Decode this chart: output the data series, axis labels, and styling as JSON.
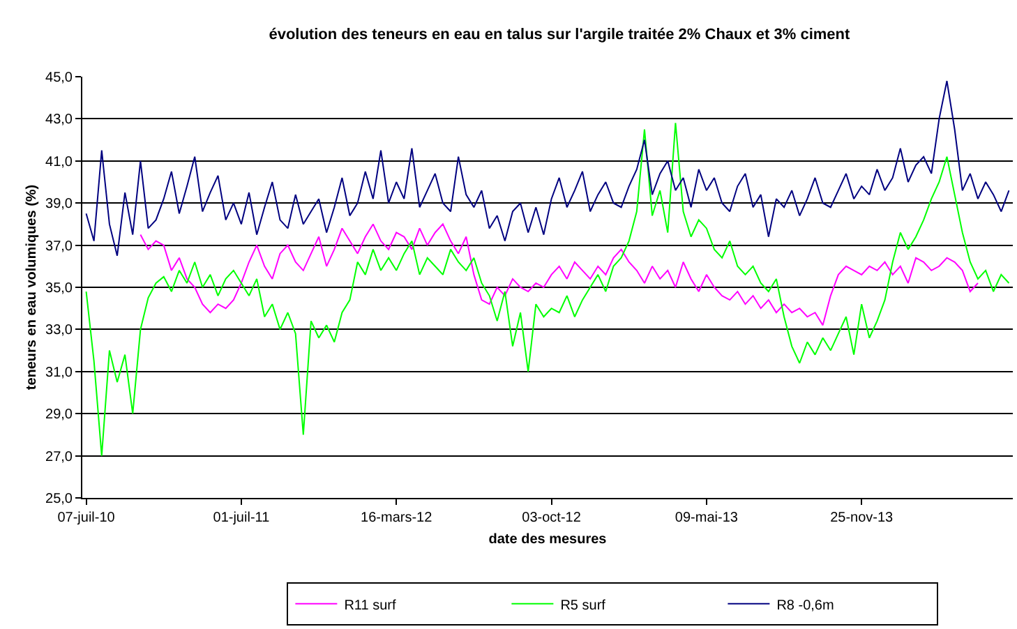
{
  "chart_data": {
    "type": "line",
    "title": "évolution des teneurs en eau en talus sur l'argile traitée 2% Chaux et 3% ciment",
    "xlabel": "date des mesures",
    "ylabel": "teneurs en eau volumiques (%)",
    "categories": [
      "07-juil-10",
      null,
      null,
      null,
      null,
      null,
      null,
      null,
      null,
      null,
      null,
      null,
      null,
      null,
      null,
      null,
      null,
      null,
      null,
      null,
      "01-juil-11",
      null,
      null,
      null,
      null,
      null,
      null,
      null,
      null,
      null,
      null,
      null,
      null,
      null,
      null,
      null,
      null,
      null,
      null,
      null,
      "16-mars-12",
      null,
      null,
      null,
      null,
      null,
      null,
      null,
      null,
      null,
      null,
      null,
      null,
      null,
      null,
      null,
      null,
      null,
      null,
      null,
      "03-oct-12",
      null,
      null,
      null,
      null,
      null,
      null,
      null,
      null,
      null,
      null,
      null,
      null,
      null,
      null,
      null,
      null,
      null,
      null,
      null,
      "09-mai-13",
      null,
      null,
      null,
      null,
      null,
      null,
      null,
      null,
      null,
      null,
      null,
      null,
      null,
      null,
      null,
      null,
      null,
      null,
      null,
      "25-nov-13",
      null,
      null,
      null,
      null,
      null,
      null,
      null,
      null,
      null,
      null,
      null,
      null,
      null,
      null,
      null,
      null,
      null,
      null,
      null
    ],
    "series": [
      {
        "name": "R11 surf",
        "color": "#ff00ff",
        "values": [
          null,
          null,
          null,
          null,
          null,
          null,
          null,
          37.5,
          36.8,
          37.2,
          37.0,
          35.8,
          36.4,
          35.4,
          35.0,
          34.2,
          33.8,
          34.2,
          34.0,
          34.4,
          35.2,
          36.2,
          37.0,
          36.0,
          35.4,
          36.6,
          37.0,
          36.2,
          35.8,
          36.6,
          37.4,
          36.0,
          36.8,
          37.8,
          37.2,
          36.6,
          37.4,
          38.0,
          37.2,
          36.8,
          37.6,
          37.4,
          36.8,
          37.8,
          37.0,
          37.6,
          38.0,
          37.2,
          36.6,
          37.4,
          35.6,
          34.4,
          34.2,
          35.0,
          34.6,
          35.4,
          35.0,
          34.8,
          35.2,
          35.0,
          35.6,
          36.0,
          35.4,
          36.2,
          35.8,
          35.4,
          36.0,
          35.6,
          36.4,
          36.8,
          36.2,
          35.8,
          35.2,
          36.0,
          35.4,
          35.8,
          35.0,
          36.2,
          35.4,
          34.8,
          35.6,
          35.0,
          34.6,
          34.4,
          34.8,
          34.2,
          34.6,
          34.0,
          34.4,
          33.8,
          34.2,
          33.8,
          34.0,
          33.6,
          33.8,
          33.2,
          34.6,
          35.6,
          36.0,
          35.8,
          35.6,
          36.0,
          35.8,
          36.2,
          35.6,
          36.0,
          35.2,
          36.4,
          36.2,
          35.8,
          36.0,
          36.4,
          36.2,
          35.8,
          34.8,
          35.2,
          null,
          null,
          null,
          null
        ]
      },
      {
        "name": "R5 surf",
        "color": "#00ff00",
        "values": [
          34.8,
          31.5,
          27.0,
          32.0,
          30.5,
          31.8,
          29.0,
          33.0,
          34.5,
          35.2,
          35.5,
          34.8,
          35.8,
          35.2,
          36.2,
          35.0,
          35.6,
          34.6,
          35.4,
          35.8,
          35.2,
          34.6,
          35.4,
          33.6,
          34.2,
          33.0,
          33.8,
          32.8,
          28.0,
          33.4,
          32.6,
          33.2,
          32.4,
          33.8,
          34.4,
          36.2,
          35.6,
          36.8,
          35.8,
          36.4,
          35.8,
          36.6,
          37.2,
          35.6,
          36.4,
          36.0,
          35.6,
          36.8,
          36.2,
          35.8,
          36.4,
          35.2,
          34.6,
          33.4,
          34.8,
          32.2,
          33.8,
          31.0,
          34.2,
          33.6,
          34.0,
          33.8,
          34.6,
          33.6,
          34.4,
          35.0,
          35.6,
          34.8,
          36.0,
          36.4,
          37.2,
          38.6,
          42.5,
          38.4,
          39.6,
          37.6,
          42.8,
          38.6,
          37.4,
          38.2,
          37.8,
          36.8,
          36.4,
          37.2,
          36.0,
          35.6,
          36.0,
          35.2,
          34.8,
          35.4,
          33.6,
          32.2,
          31.4,
          32.4,
          31.8,
          32.6,
          32.0,
          32.8,
          33.6,
          31.8,
          34.2,
          32.6,
          33.4,
          34.4,
          36.2,
          37.6,
          36.8,
          37.4,
          38.2,
          39.2,
          40.0,
          41.2,
          39.4,
          37.6,
          36.2,
          35.4,
          35.8,
          34.8,
          35.6,
          35.2
        ]
      },
      {
        "name": "R8 -0,6m",
        "color": "#000080",
        "values": [
          38.5,
          37.2,
          41.5,
          38.0,
          36.5,
          39.5,
          37.5,
          41.0,
          37.8,
          38.2,
          39.2,
          40.5,
          38.5,
          39.8,
          41.2,
          38.6,
          39.5,
          40.3,
          38.2,
          39.0,
          38.0,
          39.5,
          37.5,
          38.8,
          40.0,
          38.2,
          37.8,
          39.4,
          38.0,
          38.6,
          39.2,
          37.6,
          38.8,
          40.2,
          38.4,
          39.0,
          40.5,
          39.2,
          41.5,
          39.0,
          40.0,
          39.2,
          41.6,
          38.8,
          39.6,
          40.4,
          39.0,
          38.6,
          41.2,
          39.4,
          38.8,
          39.6,
          37.8,
          38.4,
          37.2,
          38.6,
          39.0,
          37.6,
          38.8,
          37.5,
          39.2,
          40.2,
          38.8,
          39.6,
          40.5,
          38.6,
          39.4,
          40.0,
          39.0,
          38.8,
          39.8,
          40.6,
          42.0,
          39.4,
          40.4,
          41.0,
          39.6,
          40.2,
          38.8,
          40.6,
          39.6,
          40.2,
          39.0,
          38.6,
          39.8,
          40.4,
          38.8,
          39.4,
          37.4,
          39.2,
          38.8,
          39.6,
          38.4,
          39.2,
          40.2,
          39.0,
          38.8,
          39.6,
          40.4,
          39.2,
          39.8,
          39.4,
          40.6,
          39.6,
          40.2,
          41.6,
          40.0,
          40.8,
          41.2,
          40.4,
          43.0,
          44.8,
          42.5,
          39.6,
          40.4,
          39.2,
          40.0,
          39.4,
          38.6,
          39.6
        ]
      }
    ],
    "ylim": [
      25,
      45
    ],
    "yticks": [
      {
        "value": 25,
        "label": "25,0"
      },
      {
        "value": 27,
        "label": "27,0"
      },
      {
        "value": 29,
        "label": "29,0"
      },
      {
        "value": 31,
        "label": "31,0"
      },
      {
        "value": 33,
        "label": "33,0"
      },
      {
        "value": 35,
        "label": "35,0"
      },
      {
        "value": 37,
        "label": "37,0"
      },
      {
        "value": 39,
        "label": "39,0"
      },
      {
        "value": 41,
        "label": "41,0"
      },
      {
        "value": 43,
        "label": "43,0"
      },
      {
        "value": 45,
        "label": "45,0"
      }
    ],
    "grid": "y",
    "legend": "bottom",
    "marker": "none",
    "line_style": "solid"
  }
}
